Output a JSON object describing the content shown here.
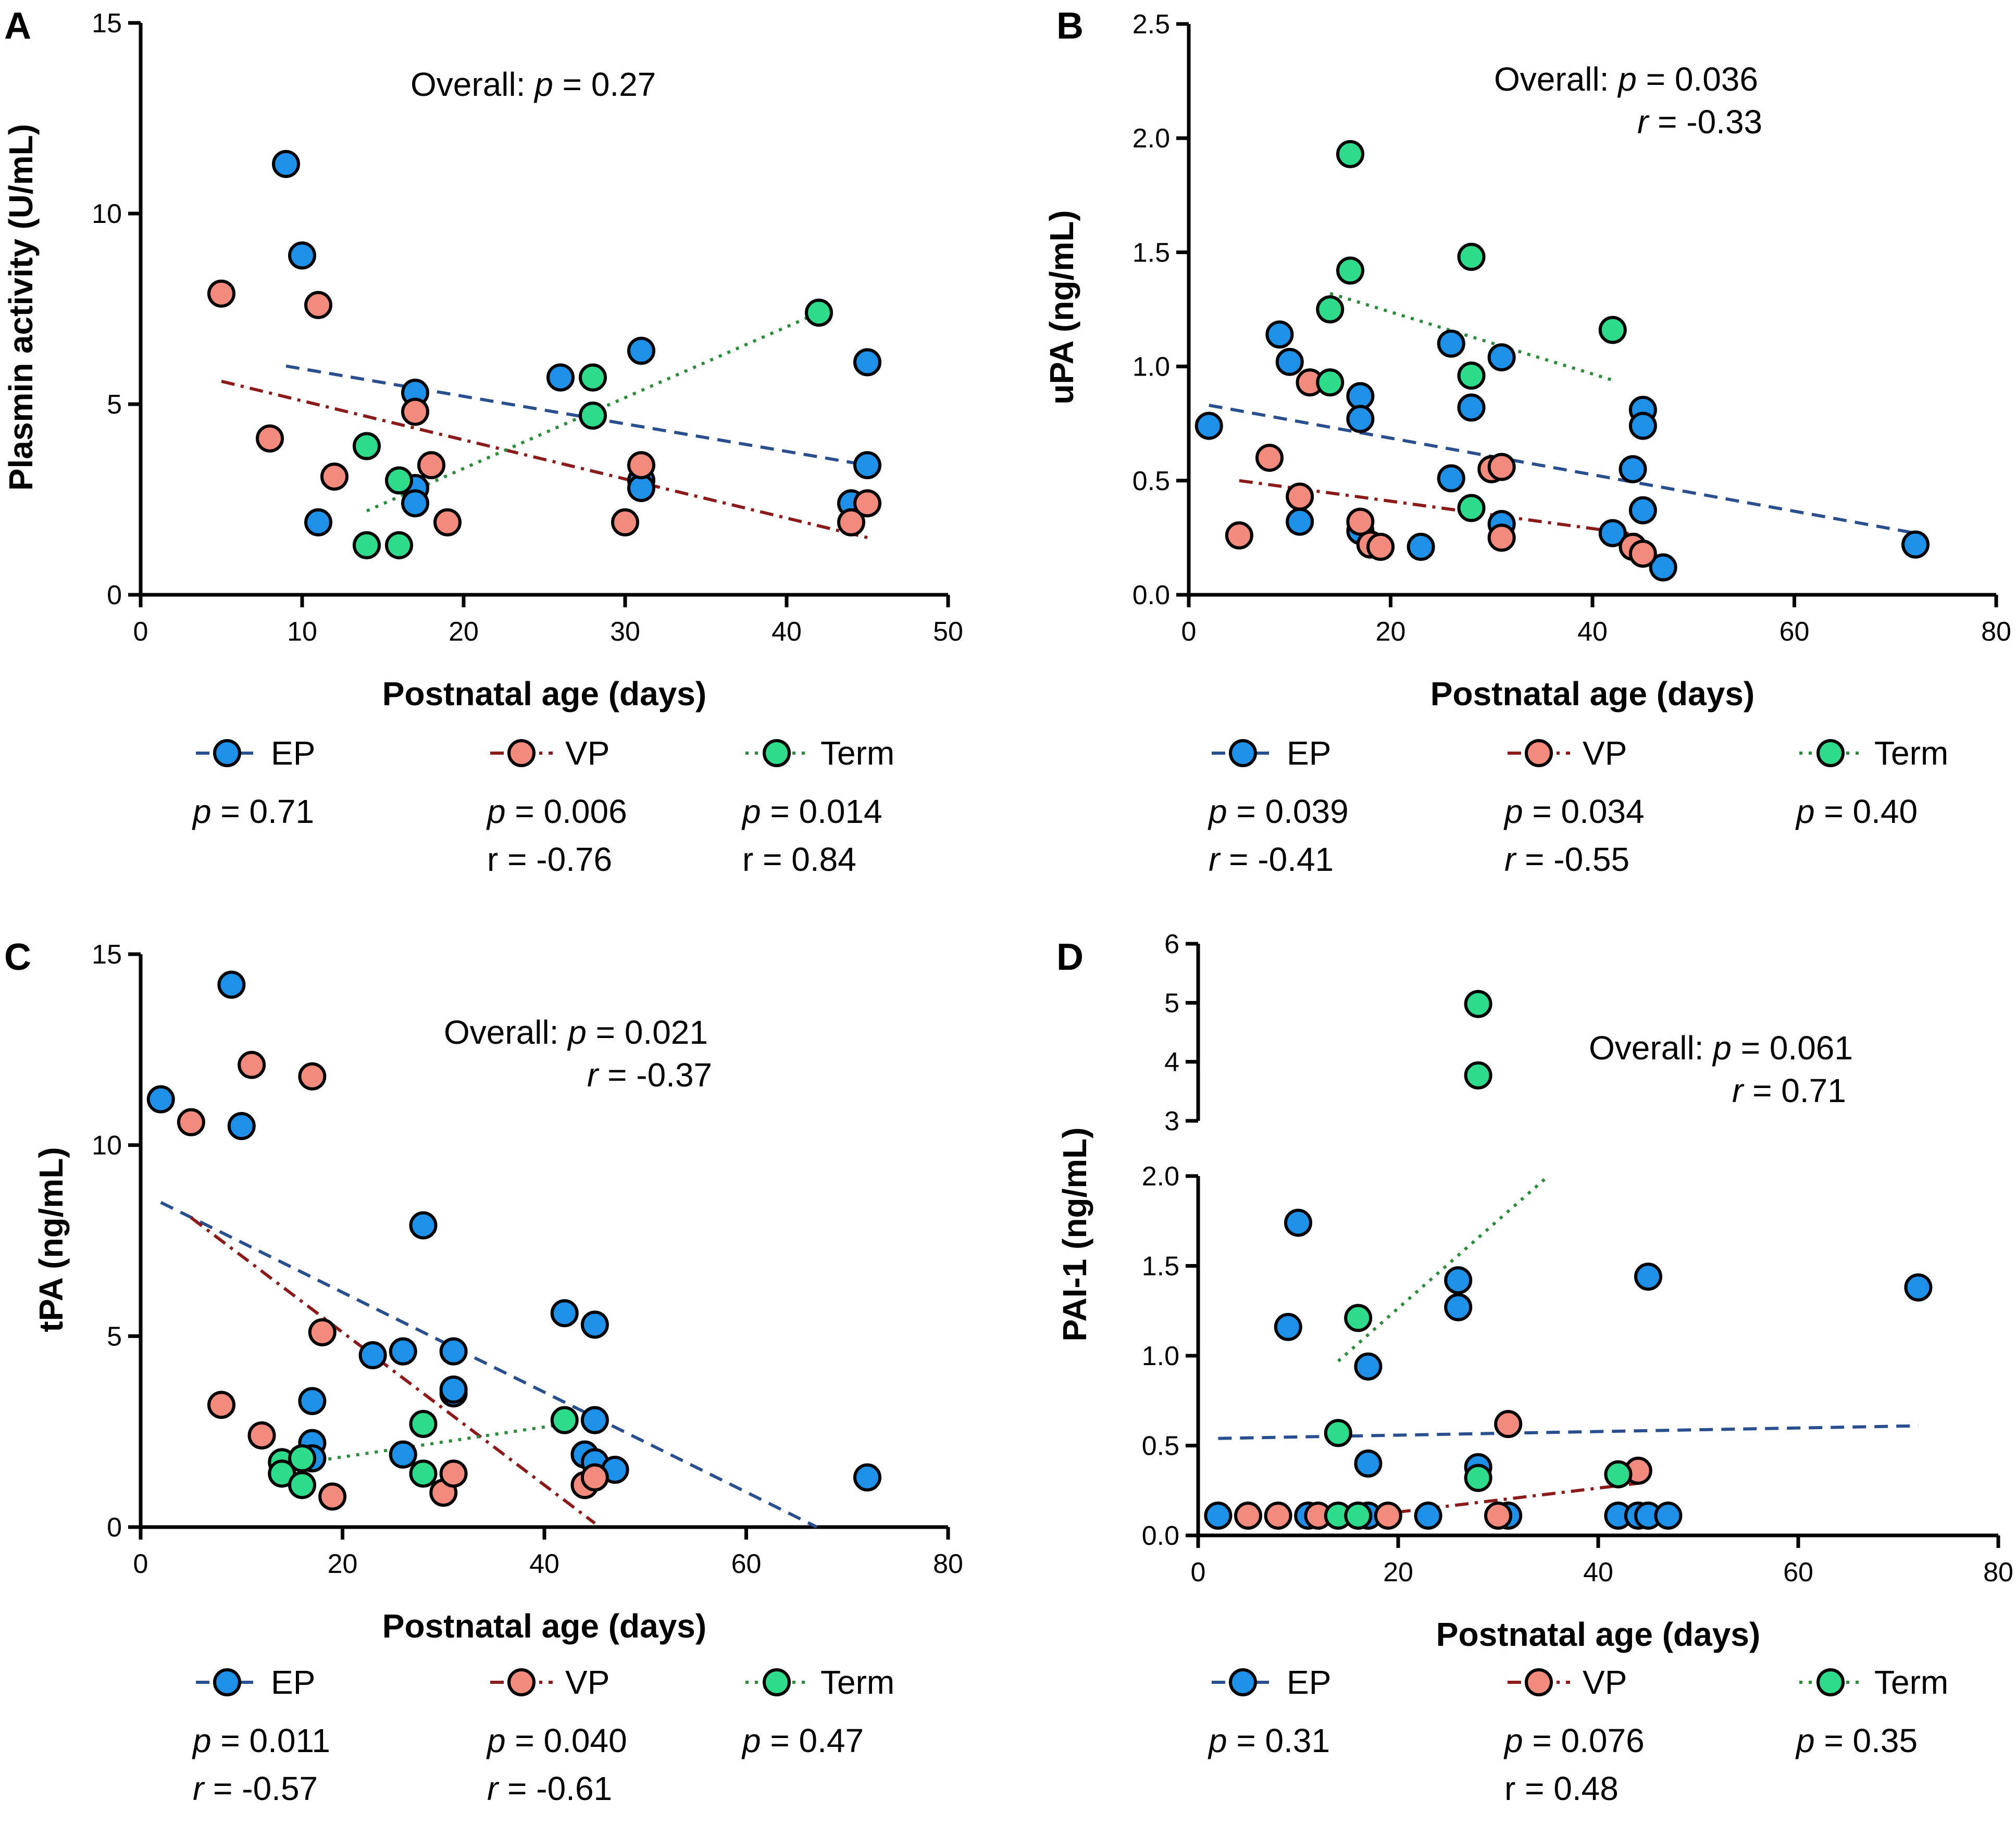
{
  "colors": {
    "EP": "#1E90E8",
    "VP": "#F28B7E",
    "Term": "#2EDB8A",
    "EP_line": "#2A4F8E",
    "VP_line": "#8B1A1A",
    "Term_line": "#2E8B3E"
  },
  "legend": {
    "EP": "EP",
    "VP": "VP",
    "Term": "Term"
  },
  "chart_data": [
    {
      "panel": "A",
      "type": "scatter",
      "ylabel": "Plasmin activity (U/mL)",
      "xlabel": "Postnatal age (days)",
      "xlim": [
        0,
        50
      ],
      "ylim": [
        0,
        15
      ],
      "xticks": [
        "0",
        "10",
        "20",
        "30",
        "40",
        "50"
      ],
      "yticks": [
        "0",
        "5",
        "10",
        "15"
      ],
      "overall": {
        "prefix": "Overall: ",
        "p_text": "= 0.27",
        "r_text": ""
      },
      "stats": {
        "EP": {
          "p_text": "= 0.71",
          "r_text": ""
        },
        "VP": {
          "p_text": "= 0.006",
          "r_text": "r = -0.76"
        },
        "Term": {
          "p_text": "= 0.014",
          "r_text": "r = 0.84"
        }
      },
      "series": [
        {
          "name": "EP",
          "points": [
            [
              9,
              11.3
            ],
            [
              10,
              8.9
            ],
            [
              11,
              1.9
            ],
            [
              17,
              5.3
            ],
            [
              17,
              2.8
            ],
            [
              17,
              2.4
            ],
            [
              26,
              5.7
            ],
            [
              31,
              6.4
            ],
            [
              31,
              3.0
            ],
            [
              31,
              2.8
            ],
            [
              44,
              2.4
            ],
            [
              45,
              6.1
            ],
            [
              45,
              3.4
            ]
          ],
          "fit": [
            [
              9,
              6.0
            ],
            [
              45,
              3.4
            ]
          ]
        },
        {
          "name": "VP",
          "points": [
            [
              5,
              7.9
            ],
            [
              8,
              4.1
            ],
            [
              11,
              7.6
            ],
            [
              12,
              3.1
            ],
            [
              17,
              4.8
            ],
            [
              18,
              3.4
            ],
            [
              19,
              1.9
            ],
            [
              30,
              1.9
            ],
            [
              31,
              3.4
            ],
            [
              44,
              1.9
            ],
            [
              45,
              2.4
            ]
          ],
          "fit": [
            [
              5,
              5.6
            ],
            [
              45,
              1.5
            ]
          ]
        },
        {
          "name": "Term",
          "points": [
            [
              14,
              3.9
            ],
            [
              14,
              1.3
            ],
            [
              16,
              3.0
            ],
            [
              16,
              1.3
            ],
            [
              28,
              5.7
            ],
            [
              28,
              4.7
            ],
            [
              42,
              7.4
            ]
          ],
          "fit": [
            [
              14,
              2.2
            ],
            [
              42,
              7.4
            ]
          ]
        }
      ]
    },
    {
      "panel": "B",
      "type": "scatter",
      "ylabel": "uPA (ng/mL)",
      "xlabel": "Postnatal age (days)",
      "xlim": [
        0,
        80
      ],
      "ylim": [
        0,
        2.5
      ],
      "xticks": [
        "0",
        "20",
        "40",
        "60",
        "80"
      ],
      "yticks": [
        "0.0",
        "0.5",
        "1.0",
        "1.5",
        "2.0",
        "2.5"
      ],
      "overall": {
        "prefix": "Overall: ",
        "p_text": "= 0.036",
        "r_text": "= -0.33"
      },
      "stats": {
        "EP": {
          "p_text": "= 0.039",
          "r_text": "= -0.41"
        },
        "VP": {
          "p_text": "= 0.034",
          "r_text": "= -0.55"
        },
        "Term": {
          "p_text": "= 0.40",
          "r_text": ""
        }
      },
      "series": [
        {
          "name": "EP",
          "points": [
            [
              2,
              0.74
            ],
            [
              9,
              1.14
            ],
            [
              10,
              1.02
            ],
            [
              11,
              0.32
            ],
            [
              17,
              0.87
            ],
            [
              17,
              0.77
            ],
            [
              17,
              0.28
            ],
            [
              23,
              0.21
            ],
            [
              26,
              1.1
            ],
            [
              26,
              0.51
            ],
            [
              28,
              0.82
            ],
            [
              31,
              1.04
            ],
            [
              31,
              0.31
            ],
            [
              42,
              0.27
            ],
            [
              44,
              0.55
            ],
            [
              45,
              0.81
            ],
            [
              45,
              0.74
            ],
            [
              45,
              0.37
            ],
            [
              47,
              0.12
            ],
            [
              72,
              0.22
            ]
          ],
          "fit": [
            [
              2,
              0.83
            ],
            [
              72,
              0.27
            ]
          ]
        },
        {
          "name": "VP",
          "points": [
            [
              5,
              0.26
            ],
            [
              8,
              0.6
            ],
            [
              11,
              0.43
            ],
            [
              12,
              0.93
            ],
            [
              17,
              0.32
            ],
            [
              18,
              0.22
            ],
            [
              19,
              0.21
            ],
            [
              30,
              0.55
            ],
            [
              31,
              0.56
            ],
            [
              31,
              0.25
            ],
            [
              44,
              0.21
            ],
            [
              45,
              0.18
            ]
          ],
          "fit": [
            [
              5,
              0.5
            ],
            [
              45,
              0.26
            ]
          ]
        },
        {
          "name": "Term",
          "points": [
            [
              14,
              1.25
            ],
            [
              14,
              0.93
            ],
            [
              16,
              1.93
            ],
            [
              16,
              1.42
            ],
            [
              28,
              1.48
            ],
            [
              28,
              0.96
            ],
            [
              28,
              0.38
            ],
            [
              42,
              1.16
            ]
          ],
          "fit": [
            [
              14,
              1.32
            ],
            [
              42,
              0.94
            ]
          ]
        }
      ]
    },
    {
      "panel": "C",
      "type": "scatter",
      "ylabel": "tPA (ng/mL)",
      "xlabel": "Postnatal age (days)",
      "xlim": [
        0,
        80
      ],
      "ylim": [
        0,
        15
      ],
      "xticks": [
        "0",
        "20",
        "40",
        "60",
        "80"
      ],
      "yticks": [
        "0",
        "5",
        "10",
        "15"
      ],
      "overall": {
        "prefix": "Overall: ",
        "p_text": "= 0.021",
        "r_text": "= -0.37"
      },
      "stats": {
        "EP": {
          "p_text": "= 0.011",
          "r_text": "= -0.57"
        },
        "VP": {
          "p_text": "= 0.040",
          "r_text": "= -0.61"
        },
        "Term": {
          "p_text": "= 0.47",
          "r_text": ""
        }
      },
      "series": [
        {
          "name": "EP",
          "points": [
            [
              2,
              11.2
            ],
            [
              9,
              14.2
            ],
            [
              10,
              10.5
            ],
            [
              17,
              3.3
            ],
            [
              17,
              2.2
            ],
            [
              17,
              1.8
            ],
            [
              23,
              4.5
            ],
            [
              26,
              4.6
            ],
            [
              26,
              1.9
            ],
            [
              28,
              7.9
            ],
            [
              31,
              4.6
            ],
            [
              31,
              3.5
            ],
            [
              31,
              3.6
            ],
            [
              42,
              5.6
            ],
            [
              44,
              1.9
            ],
            [
              45,
              5.3
            ],
            [
              45,
              2.8
            ],
            [
              45,
              1.7
            ],
            [
              47,
              1.5
            ],
            [
              72,
              1.3
            ]
          ],
          "fit": [
            [
              2,
              8.5
            ],
            [
              67,
              0
            ]
          ]
        },
        {
          "name": "VP",
          "points": [
            [
              5,
              10.6
            ],
            [
              8,
              3.2
            ],
            [
              11,
              12.1
            ],
            [
              12,
              2.4
            ],
            [
              17,
              11.8
            ],
            [
              18,
              5.1
            ],
            [
              19,
              0.8
            ],
            [
              30,
              0.9
            ],
            [
              31,
              1.4
            ],
            [
              44,
              1.1
            ],
            [
              45,
              1.3
            ]
          ],
          "fit": [
            [
              5,
              8.1
            ],
            [
              45,
              0.1
            ]
          ]
        },
        {
          "name": "Term",
          "points": [
            [
              14,
              1.7
            ],
            [
              14,
              1.4
            ],
            [
              16,
              1.8
            ],
            [
              16,
              1.1
            ],
            [
              28,
              2.7
            ],
            [
              28,
              1.4
            ],
            [
              42,
              2.8
            ]
          ],
          "fit": [
            [
              14,
              1.6
            ],
            [
              42,
              2.7
            ]
          ]
        }
      ]
    },
    {
      "panel": "D",
      "type": "scatter",
      "ylabel": "PAI-1 (ng/mL)",
      "xlabel": "Postnatal age (days)",
      "xlim": [
        0,
        80
      ],
      "ylim_lower": [
        0,
        2.0
      ],
      "ylim_upper": [
        3,
        6
      ],
      "xticks": [
        "0",
        "20",
        "40",
        "60",
        "80"
      ],
      "yticks_lower": [
        "0.0",
        "0.5",
        "1.0",
        "1.5",
        "2.0"
      ],
      "yticks_upper": [
        "3",
        "4",
        "5",
        "6"
      ],
      "overall": {
        "prefix": "Overall: ",
        "p_text": "= 0.061",
        "r_text": "= 0.71"
      },
      "stats": {
        "EP": {
          "p_text": "= 0.31",
          "r_text": ""
        },
        "VP": {
          "p_text": "= 0.076",
          "r_text": "r = 0.48"
        },
        "Term": {
          "p_text": "= 0.35",
          "r_text": ""
        }
      },
      "series": [
        {
          "name": "EP",
          "points": [
            [
              2,
              0.11
            ],
            [
              9,
              1.16
            ],
            [
              10,
              1.74
            ],
            [
              11,
              0.11
            ],
            [
              16,
              0.11
            ],
            [
              17,
              0.94
            ],
            [
              17,
              0.4
            ],
            [
              17,
              0.11
            ],
            [
              23,
              0.11
            ],
            [
              26,
              1.42
            ],
            [
              26,
              1.27
            ],
            [
              28,
              0.38
            ],
            [
              31,
              0.11
            ],
            [
              42,
              0.11
            ],
            [
              44,
              0.11
            ],
            [
              45,
              1.44
            ],
            [
              45,
              0.11
            ],
            [
              47,
              0.11
            ],
            [
              72,
              1.38
            ]
          ],
          "fit": [
            [
              2,
              0.54
            ],
            [
              72,
              0.61
            ]
          ]
        },
        {
          "name": "VP",
          "points": [
            [
              5,
              0.11
            ],
            [
              8,
              0.11
            ],
            [
              12,
              0.11
            ],
            [
              19,
              0.11
            ],
            [
              30,
              0.11
            ],
            [
              31,
              0.62
            ],
            [
              44,
              0.36
            ]
          ],
          "fit": [
            [
              17,
              0.11
            ],
            [
              44,
              0.29
            ]
          ]
        },
        {
          "name": "Term",
          "points": [
            [
              14,
              0.57
            ],
            [
              14,
              0.11
            ],
            [
              16,
              1.21
            ],
            [
              16,
              0.11
            ],
            [
              28,
              4.98
            ],
            [
              28,
              3.77
            ],
            [
              28,
              0.32
            ],
            [
              42,
              0.34
            ]
          ],
          "fit": [
            [
              14,
              0.97
            ],
            [
              35,
              2.0
            ]
          ]
        }
      ]
    }
  ]
}
